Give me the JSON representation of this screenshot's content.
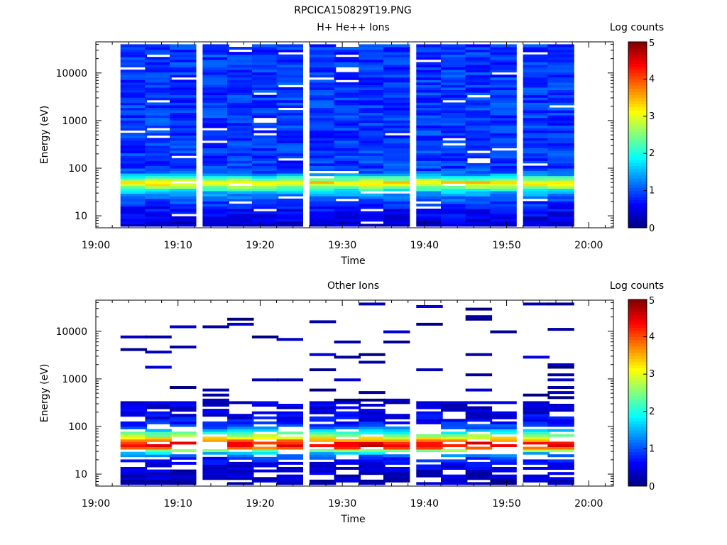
{
  "figure_title": "RPCICA150829T19.PNG",
  "colormap": [
    "#00007f",
    "#0000ff",
    "#007fff",
    "#00ffff",
    "#7fff7f",
    "#ffff00",
    "#ff7f00",
    "#ff0000",
    "#7f0000"
  ],
  "chart_data": [
    {
      "type": "heatmap",
      "title": "H+ He++ Ions",
      "xlabel": "Time",
      "ylabel": "Energy (eV)",
      "y_scale": "log",
      "ylim": [
        5.6,
        45000
      ],
      "x_ticks": [
        "19:00",
        "19:10",
        "19:20",
        "19:30",
        "19:40",
        "19:50",
        "20:00"
      ],
      "y_ticks": [
        "10",
        "100",
        "1000",
        "10000"
      ],
      "colorbar": {
        "label": "Log counts",
        "range": [
          0,
          5
        ],
        "ticks": [
          "0",
          "1",
          "2",
          "3",
          "4",
          "5"
        ]
      },
      "time_columns": [
        "19:03",
        "19:06",
        "19:09",
        "19:13",
        "19:16",
        "19:19",
        "19:22",
        "19:26",
        "19:29",
        "19:32",
        "19:35",
        "19:39",
        "19:42",
        "19:45",
        "19:48",
        "19:52",
        "19:55"
      ],
      "value_profile": {
        "energy_eV": [
          7,
          9,
          11,
          14,
          17,
          21,
          26,
          32,
          38,
          44,
          52,
          62,
          80,
          100,
          140,
          250,
          500,
          1000,
          3000,
          10000,
          40000
        ],
        "log_counts": [
          0.4,
          0.5,
          0.6,
          0.7,
          0.8,
          1.0,
          1.2,
          1.6,
          2.2,
          3.0,
          3.3,
          2.2,
          1.1,
          0.9,
          0.9,
          0.9,
          0.9,
          0.9,
          0.9,
          0.9,
          0.9
        ]
      },
      "missing_fraction": 0.05
    },
    {
      "type": "heatmap",
      "title": "Other Ions",
      "xlabel": "Time",
      "ylabel": "Energy (eV)",
      "y_scale": "log",
      "ylim": [
        5.6,
        45000
      ],
      "x_ticks": [
        "19:00",
        "19:10",
        "19:20",
        "19:30",
        "19:40",
        "19:50",
        "20:00"
      ],
      "y_ticks": [
        "10",
        "100",
        "1000",
        "10000"
      ],
      "colorbar": {
        "label": "Log counts",
        "range": [
          0,
          5
        ],
        "ticks": [
          "0",
          "1",
          "2",
          "3",
          "4",
          "5"
        ]
      },
      "time_columns": [
        "19:03",
        "19:06",
        "19:09",
        "19:13",
        "19:16",
        "19:19",
        "19:22",
        "19:26",
        "19:29",
        "19:32",
        "19:35",
        "19:39",
        "19:42",
        "19:45",
        "19:48",
        "19:52",
        "19:55"
      ],
      "value_profile": {
        "energy_eV": [
          7,
          9,
          11,
          14,
          17,
          21,
          26,
          30,
          34,
          38,
          44,
          52,
          62,
          75,
          90,
          110,
          140,
          200,
          300
        ],
        "log_counts": [
          0.3,
          0.4,
          0.4,
          0.5,
          0.6,
          0.8,
          1.3,
          2.0,
          3.6,
          4.5,
          4.4,
          3.6,
          2.8,
          2.0,
          1.3,
          0.9,
          0.6,
          0.5,
          0.4
        ]
      },
      "sparse_high_energy_value": 0.2,
      "missing_fraction": 0.3
    }
  ]
}
